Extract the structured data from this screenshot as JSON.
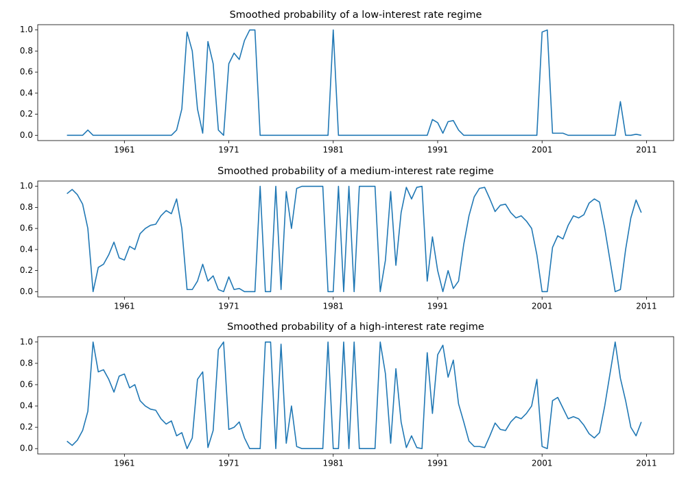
{
  "chart_data": [
    {
      "type": "line",
      "title": "Smoothed probability of a low-interest rate regime",
      "color": "#1f77b4",
      "xlim": [
        1952.7,
        2013.6
      ],
      "xticks": [
        1961,
        1971,
        1981,
        1991,
        2001,
        2011
      ],
      "ylim": [
        -0.05,
        1.05
      ],
      "yticks": [
        {
          "value": 0,
          "label": "0.0"
        },
        0.2,
        0.4,
        0.6,
        0.8,
        {
          "value": 1,
          "label": "1.0"
        }
      ],
      "x": [
        1955.5,
        1956,
        1956.5,
        1957,
        1957.5,
        1958,
        1958.5,
        1959,
        1959.5,
        1960,
        1960.5,
        1961,
        1961.5,
        1962,
        1962.5,
        1963,
        1963.5,
        1964,
        1964.5,
        1965,
        1965.5,
        1966,
        1966.5,
        1967,
        1967.5,
        1968,
        1968.5,
        1969,
        1969.5,
        1970,
        1970.5,
        1971,
        1971.5,
        1972,
        1972.5,
        1973,
        1973.5,
        1974,
        1974.5,
        1975,
        1975.5,
        1976,
        1976.5,
        1977,
        1977.5,
        1978,
        1978.5,
        1979,
        1979.5,
        1980,
        1980.5,
        1981,
        1981.5,
        1982,
        1982.5,
        1983,
        1983.5,
        1984,
        1984.5,
        1985,
        1985.5,
        1986,
        1986.5,
        1987,
        1987.5,
        1988,
        1988.5,
        1989,
        1989.5,
        1990,
        1990.5,
        1991,
        1991.5,
        1992,
        1992.5,
        1993,
        1993.5,
        1994,
        1994.5,
        1995,
        1995.5,
        1996,
        1996.5,
        1997,
        1997.5,
        1998,
        1998.5,
        1999,
        1999.5,
        2000,
        2000.5,
        2001,
        2001.5,
        2002,
        2002.5,
        2003,
        2003.5,
        2004,
        2004.5,
        2005,
        2005.5,
        2006,
        2006.5,
        2007,
        2007.5,
        2008,
        2008.5,
        2009,
        2009.5,
        2010,
        2010.5
      ],
      "values": [
        0,
        0,
        0,
        0,
        0.05,
        0,
        0,
        0,
        0,
        0,
        0,
        0,
        0,
        0,
        0,
        0,
        0,
        0,
        0,
        0,
        0,
        0.05,
        0.25,
        0.98,
        0.8,
        0.25,
        0.02,
        0.89,
        0.68,
        0.05,
        0,
        0.68,
        0.78,
        0.72,
        0.9,
        1,
        1,
        0,
        0,
        0,
        0,
        0,
        0,
        0,
        0,
        0,
        0,
        0,
        0,
        0,
        0,
        1,
        0,
        0,
        0,
        0,
        0,
        0,
        0,
        0,
        0,
        0,
        0,
        0,
        0,
        0,
        0,
        0,
        0,
        0,
        0.15,
        0.12,
        0.02,
        0.13,
        0.14,
        0.05,
        0,
        0,
        0,
        0,
        0,
        0,
        0,
        0,
        0,
        0,
        0,
        0,
        0,
        0,
        0,
        0.98,
        1,
        0.02,
        0.02,
        0.02,
        0,
        0,
        0,
        0,
        0,
        0,
        0,
        0,
        0,
        0,
        0.32,
        0,
        0,
        0.01,
        0
      ]
    },
    {
      "type": "line",
      "title": "Smoothed probability of a medium-interest rate regime",
      "color": "#1f77b4",
      "xlim": [
        1952.7,
        2013.6
      ],
      "xticks": [
        1961,
        1971,
        1981,
        1991,
        2001,
        2011
      ],
      "ylim": [
        -0.05,
        1.05
      ],
      "yticks": [
        {
          "value": 0,
          "label": "0.0"
        },
        0.2,
        0.4,
        0.6,
        0.8,
        {
          "value": 1,
          "label": "1.0"
        }
      ],
      "x": [
        1955.5,
        1956,
        1956.5,
        1957,
        1957.5,
        1958,
        1958.5,
        1959,
        1959.5,
        1960,
        1960.5,
        1961,
        1961.5,
        1962,
        1962.5,
        1963,
        1963.5,
        1964,
        1964.5,
        1965,
        1965.5,
        1966,
        1966.5,
        1967,
        1967.5,
        1968,
        1968.5,
        1969,
        1969.5,
        1970,
        1970.5,
        1971,
        1971.5,
        1972,
        1972.5,
        1973,
        1973.5,
        1974,
        1974.5,
        1975,
        1975.5,
        1976,
        1976.5,
        1977,
        1977.5,
        1978,
        1978.5,
        1979,
        1979.5,
        1980,
        1980.5,
        1981,
        1981.5,
        1982,
        1982.5,
        1983,
        1983.5,
        1984,
        1984.5,
        1985,
        1985.5,
        1986,
        1986.5,
        1987,
        1987.5,
        1988,
        1988.5,
        1989,
        1989.5,
        1990,
        1990.5,
        1991,
        1991.5,
        1992,
        1992.5,
        1993,
        1993.5,
        1994,
        1994.5,
        1995,
        1995.5,
        1996,
        1996.5,
        1997,
        1997.5,
        1998,
        1998.5,
        1999,
        1999.5,
        2000,
        2000.5,
        2001,
        2001.5,
        2002,
        2002.5,
        2003,
        2003.5,
        2004,
        2004.5,
        2005,
        2005.5,
        2006,
        2006.5,
        2007,
        2007.5,
        2008,
        2008.5,
        2009,
        2009.5,
        2010,
        2010.5
      ],
      "values": [
        0.93,
        0.97,
        0.92,
        0.83,
        0.6,
        0,
        0.23,
        0.26,
        0.35,
        0.47,
        0.32,
        0.3,
        0.43,
        0.4,
        0.55,
        0.6,
        0.63,
        0.64,
        0.72,
        0.77,
        0.74,
        0.88,
        0.6,
        0.02,
        0.02,
        0.1,
        0.26,
        0.1,
        0.15,
        0.02,
        0,
        0.14,
        0.02,
        0.03,
        0,
        0,
        0,
        1,
        0,
        0,
        1,
        0.02,
        0.95,
        0.6,
        0.98,
        1,
        1,
        1,
        1,
        1,
        0,
        0,
        1,
        0,
        1,
        0,
        1,
        1,
        1,
        1,
        0,
        0.3,
        0.95,
        0.25,
        0.75,
        0.99,
        0.88,
        0.99,
        1,
        0.1,
        0.52,
        0.2,
        0,
        0.2,
        0.03,
        0.1,
        0.45,
        0.72,
        0.9,
        0.98,
        0.99,
        0.88,
        0.76,
        0.82,
        0.83,
        0.75,
        0.7,
        0.72,
        0.67,
        0.6,
        0.35,
        0,
        0,
        0.42,
        0.53,
        0.5,
        0.63,
        0.72,
        0.7,
        0.73,
        0.84,
        0.88,
        0.85,
        0.6,
        0.3,
        0,
        0.02,
        0.4,
        0.7,
        0.87,
        0.75
      ]
    },
    {
      "type": "line",
      "title": "Smoothed probability of a high-interest rate regime",
      "color": "#1f77b4",
      "xlim": [
        1952.7,
        2013.6
      ],
      "xticks": [
        1961,
        1971,
        1981,
        1991,
        2001,
        2011
      ],
      "ylim": [
        -0.05,
        1.05
      ],
      "yticks": [
        {
          "value": 0,
          "label": "0.0"
        },
        0.2,
        0.4,
        0.6,
        0.8,
        {
          "value": 1,
          "label": "1.0"
        }
      ],
      "x": [
        1955.5,
        1956,
        1956.5,
        1957,
        1957.5,
        1958,
        1958.5,
        1959,
        1959.5,
        1960,
        1960.5,
        1961,
        1961.5,
        1962,
        1962.5,
        1963,
        1963.5,
        1964,
        1964.5,
        1965,
        1965.5,
        1966,
        1966.5,
        1967,
        1967.5,
        1968,
        1968.5,
        1969,
        1969.5,
        1970,
        1970.5,
        1971,
        1971.5,
        1972,
        1972.5,
        1973,
        1973.5,
        1974,
        1974.5,
        1975,
        1975.5,
        1976,
        1976.5,
        1977,
        1977.5,
        1978,
        1978.5,
        1979,
        1979.5,
        1980,
        1980.5,
        1981,
        1981.5,
        1982,
        1982.5,
        1983,
        1983.5,
        1984,
        1984.5,
        1985,
        1985.5,
        1986,
        1986.5,
        1987,
        1987.5,
        1988,
        1988.5,
        1989,
        1989.5,
        1990,
        1990.5,
        1991,
        1991.5,
        1992,
        1992.5,
        1993,
        1993.5,
        1994,
        1994.5,
        1995,
        1995.5,
        1996,
        1996.5,
        1997,
        1997.5,
        1998,
        1998.5,
        1999,
        1999.5,
        2000,
        2000.5,
        2001,
        2001.5,
        2002,
        2002.5,
        2003,
        2003.5,
        2004,
        2004.5,
        2005,
        2005.5,
        2006,
        2006.5,
        2007,
        2007.5,
        2008,
        2008.5,
        2009,
        2009.5,
        2010,
        2010.5
      ],
      "values": [
        0.07,
        0.03,
        0.08,
        0.17,
        0.35,
        1,
        0.72,
        0.74,
        0.65,
        0.53,
        0.68,
        0.7,
        0.57,
        0.6,
        0.45,
        0.4,
        0.37,
        0.36,
        0.28,
        0.23,
        0.26,
        0.12,
        0.15,
        0,
        0.1,
        0.65,
        0.72,
        0.01,
        0.17,
        0.93,
        1,
        0.18,
        0.2,
        0.25,
        0.1,
        0,
        0,
        0,
        1,
        1,
        0,
        0.98,
        0.05,
        0.4,
        0.02,
        0,
        0,
        0,
        0,
        0,
        1,
        0,
        0,
        1,
        0,
        1,
        0,
        0,
        0,
        0,
        1,
        0.7,
        0.05,
        0.75,
        0.25,
        0.01,
        0.12,
        0.01,
        0,
        0.9,
        0.33,
        0.88,
        0.97,
        0.67,
        0.83,
        0.42,
        0.25,
        0.07,
        0.02,
        0.02,
        0.01,
        0.12,
        0.24,
        0.18,
        0.17,
        0.25,
        0.3,
        0.28,
        0.33,
        0.4,
        0.65,
        0.02,
        0,
        0.45,
        0.48,
        0.38,
        0.28,
        0.3,
        0.28,
        0.22,
        0.14,
        0.1,
        0.15,
        0.4,
        0.7,
        1,
        0.66,
        0.45,
        0.2,
        0.12,
        0.25
      ]
    }
  ]
}
